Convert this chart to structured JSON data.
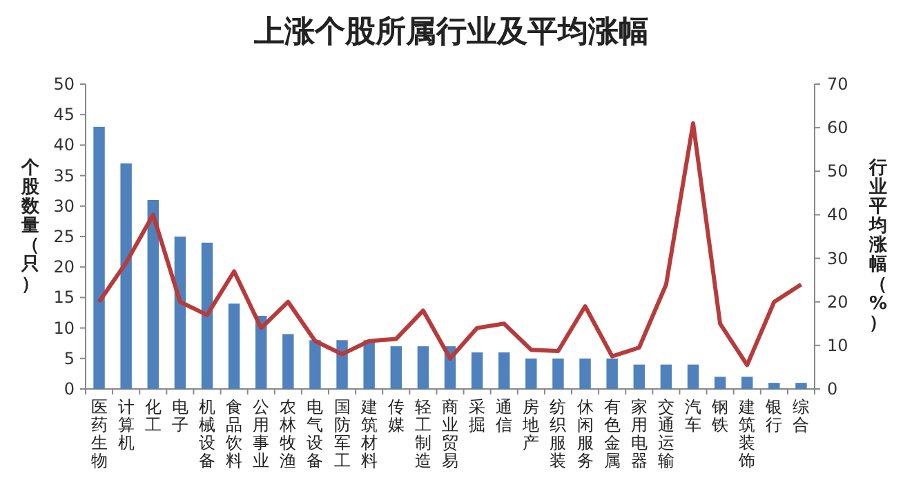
{
  "chart_data": {
    "type": "bar",
    "title": "上涨个股所属行业及平均涨幅",
    "ylabel": "个股数量（只）",
    "y2label": "行业平均涨幅（%）",
    "categories": [
      "医药生物",
      "计算机",
      "化工",
      "电子",
      "机械设备",
      "食品饮料",
      "公用事业",
      "农林牧渔",
      "电气设备",
      "国防军工",
      "建筑材料",
      "传媒",
      "轻工制造",
      "商业贸易",
      "采掘",
      "通信",
      "房地产",
      "纺织服装",
      "休闲服务",
      "有色金属",
      "家用电器",
      "交通运输",
      "汽车",
      "钢铁",
      "建筑装饰",
      "银行",
      "综合"
    ],
    "series": [
      {
        "color": "#4f81bd",
        "values": [
          43,
          37,
          31,
          25,
          24,
          14,
          12,
          9,
          8,
          8,
          8,
          7,
          7,
          7,
          6,
          6,
          5,
          5,
          5,
          5,
          4,
          4,
          4,
          2,
          2,
          1,
          1
        ]
      },
      {
        "type": "line",
        "axis": "y2",
        "color": "#b83b3b",
        "values": [
          20,
          29,
          40,
          20,
          17,
          27,
          14,
          20,
          11,
          8,
          11,
          11.5,
          18,
          7,
          14,
          15,
          9,
          8.7,
          19,
          7.5,
          9.5,
          24,
          61,
          15,
          5.5,
          20,
          24
        ]
      }
    ],
    "ylim": [
      0,
      50
    ],
    "yticks": [
      0,
      5,
      10,
      15,
      20,
      25,
      30,
      35,
      40,
      45,
      50
    ],
    "y2lim": [
      0,
      70
    ],
    "y2ticks": [
      0,
      10,
      20,
      30,
      40,
      50,
      60,
      70
    ],
    "marker": "none"
  }
}
